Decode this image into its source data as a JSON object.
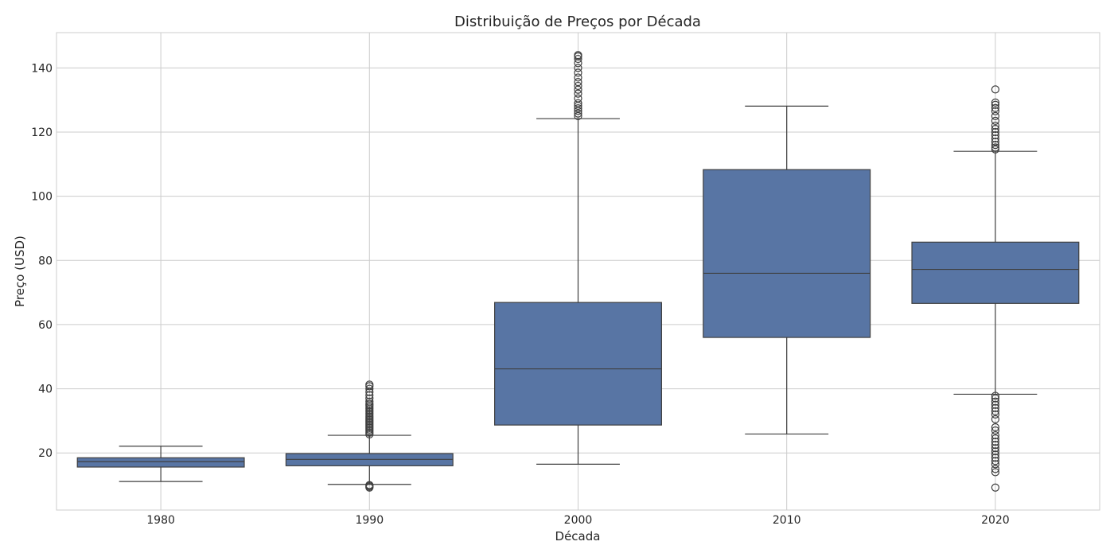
{
  "chart_data": {
    "type": "box",
    "title": "Distribuição de Preços por Década",
    "xlabel": "Década",
    "ylabel": "Preço (USD)",
    "ylim": [
      2.2,
      151
    ],
    "yticks": [
      20,
      40,
      60,
      80,
      100,
      120,
      140
    ],
    "grid": true,
    "box_color": "#5875a4",
    "line_color": "#3f3f3f",
    "categories": [
      "1980",
      "1990",
      "2000",
      "2010",
      "2020"
    ],
    "boxes": [
      {
        "category": "1980",
        "whisker_low": 11.1,
        "q1": 15.6,
        "median": 17.3,
        "q3": 18.5,
        "whisker_high": 22.1,
        "outliers": []
      },
      {
        "category": "1990",
        "whisker_low": 10.2,
        "q1": 16.0,
        "median": 18.0,
        "q3": 19.8,
        "whisker_high": 25.5,
        "outliers": [
          9.2,
          9.5,
          9.8,
          10.0,
          25.8,
          26.3,
          26.8,
          27.3,
          27.8,
          28.3,
          28.8,
          29.3,
          29.8,
          30.3,
          30.8,
          31.3,
          31.8,
          32.3,
          32.8,
          33.3,
          33.8,
          34.3,
          34.8,
          35.3,
          36.0,
          37.0,
          38.0,
          39.0,
          40.0,
          40.8,
          41.3
        ]
      },
      {
        "category": "2000",
        "whisker_low": 16.5,
        "q1": 28.7,
        "median": 46.2,
        "q3": 66.9,
        "whisker_high": 124.2,
        "outliers": [
          125.0,
          125.8,
          126.6,
          127.4,
          128.2,
          129.0,
          130.5,
          132.0,
          133.2,
          134.4,
          135.6,
          137.0,
          138.5,
          140.0,
          141.5,
          142.8,
          143.6,
          144.0
        ]
      },
      {
        "category": "2010",
        "whisker_low": 25.9,
        "q1": 56.0,
        "median": 76.0,
        "q3": 108.3,
        "whisker_high": 128.1,
        "outliers": []
      },
      {
        "category": "2020",
        "whisker_low": 38.3,
        "q1": 66.6,
        "median": 77.2,
        "q3": 85.7,
        "whisker_high": 114.0,
        "outliers": [
          9.2,
          14.0,
          15.0,
          16.5,
          17.5,
          18.5,
          19.5,
          20.5,
          21.5,
          22.5,
          23.5,
          24.5,
          25.5,
          27.0,
          28.0,
          30.5,
          32.0,
          33.0,
          34.0,
          35.0,
          36.0,
          37.0,
          37.8,
          114.6,
          115.2,
          116.0,
          117.0,
          118.0,
          119.0,
          120.0,
          121.0,
          122.0,
          123.5,
          125.0,
          126.5,
          127.5,
          128.5,
          129.2,
          133.3
        ]
      }
    ]
  }
}
